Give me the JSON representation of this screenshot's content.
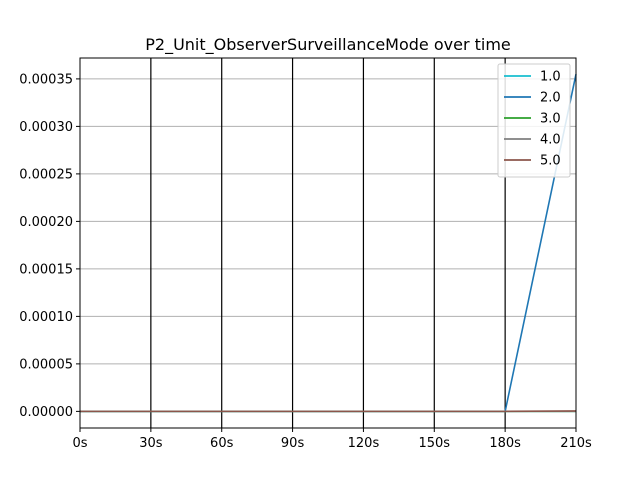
{
  "chart_data": {
    "type": "line",
    "title": "P2_Unit_ObserverSurveillanceMode over time",
    "xlabel": "",
    "ylabel": "",
    "x": [
      0,
      30,
      60,
      90,
      120,
      150,
      180,
      210
    ],
    "x_tick_labels": [
      "0s",
      "30s",
      "60s",
      "90s",
      "120s",
      "150s",
      "180s",
      "210s"
    ],
    "xlim": [
      0,
      210
    ],
    "y_ticks": [
      0.0,
      5e-05,
      0.0001,
      0.00015,
      0.0002,
      0.00025,
      0.0003,
      0.00035
    ],
    "y_tick_labels": [
      "0.00000",
      "0.00005",
      "0.00010",
      "0.00015",
      "0.00020",
      "0.00025",
      "0.00030",
      "0.00035"
    ],
    "ylim": [
      -1.75e-05,
      0.000372
    ],
    "grid": "horizontal lines at y ticks; vertical black lines at x ticks",
    "legend_position": "top-right",
    "series": [
      {
        "name": "1.0",
        "color": "#17becf",
        "values": [
          0,
          0,
          0,
          0,
          0,
          0,
          0,
          0
        ]
      },
      {
        "name": "2.0",
        "color": "#1f77b4",
        "values": [
          0,
          0,
          0,
          0,
          0,
          0,
          0,
          0.000355
        ]
      },
      {
        "name": "3.0",
        "color": "#2ca02c",
        "values": [
          0,
          0,
          0,
          0,
          0,
          0,
          0,
          0
        ]
      },
      {
        "name": "4.0",
        "color": "#7f7f7f",
        "values": [
          0,
          0,
          0,
          0,
          0,
          0,
          0,
          0
        ]
      },
      {
        "name": "5.0",
        "color": "#8c564b",
        "values": [
          0,
          0,
          0,
          0,
          0,
          0,
          0,
          5e-07
        ]
      }
    ]
  }
}
